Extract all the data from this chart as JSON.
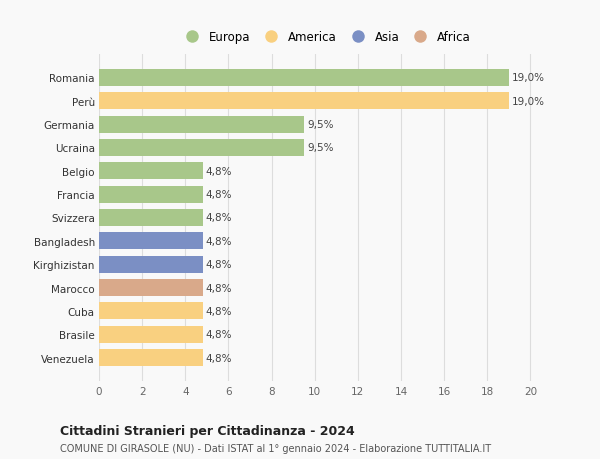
{
  "categories": [
    "Venezuela",
    "Brasile",
    "Cuba",
    "Marocco",
    "Kirghizistan",
    "Bangladesh",
    "Svizzera",
    "Francia",
    "Belgio",
    "Ucraina",
    "Germania",
    "Perù",
    "Romania"
  ],
  "values": [
    4.8,
    4.8,
    4.8,
    4.8,
    4.8,
    4.8,
    4.8,
    4.8,
    4.8,
    9.5,
    9.5,
    19.0,
    19.0
  ],
  "labels": [
    "4,8%",
    "4,8%",
    "4,8%",
    "4,8%",
    "4,8%",
    "4,8%",
    "4,8%",
    "4,8%",
    "4,8%",
    "9,5%",
    "9,5%",
    "19,0%",
    "19,0%"
  ],
  "colors": [
    "#f9d080",
    "#f9d080",
    "#f9d080",
    "#d9a98a",
    "#7b8fc4",
    "#7b8fc4",
    "#a8c78a",
    "#a8c78a",
    "#a8c78a",
    "#a8c78a",
    "#a8c78a",
    "#f9d080",
    "#a8c78a"
  ],
  "legend": [
    {
      "label": "Europa",
      "color": "#a8c78a"
    },
    {
      "label": "America",
      "color": "#f9d080"
    },
    {
      "label": "Asia",
      "color": "#7b8fc4"
    },
    {
      "label": "Africa",
      "color": "#d9a98a"
    }
  ],
  "xlim": [
    0,
    21
  ],
  "xticks": [
    0,
    2,
    4,
    6,
    8,
    10,
    12,
    14,
    16,
    18,
    20
  ],
  "title": "Cittadini Stranieri per Cittadinanza - 2024",
  "subtitle": "COMUNE DI GIRASOLE (NU) - Dati ISTAT al 1° gennaio 2024 - Elaborazione TUTTITALIA.IT",
  "background_color": "#f9f9f9",
  "grid_color": "#dddddd",
  "bar_height": 0.72,
  "label_fontsize": 7.5,
  "tick_fontsize": 7.5,
  "legend_fontsize": 8.5,
  "title_fontsize": 9.0,
  "subtitle_fontsize": 7.0
}
